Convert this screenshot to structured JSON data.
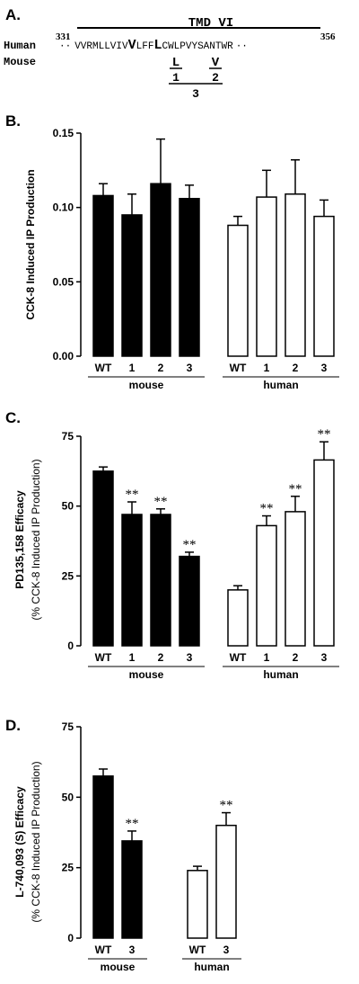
{
  "panels": {
    "a": {
      "label": "A."
    },
    "b": {
      "label": "B."
    },
    "c": {
      "label": "C."
    },
    "d": {
      "label": "D."
    }
  },
  "sequence": {
    "region_label": "TMD VI",
    "start_number": "331",
    "end_number": "356",
    "human_label": "Human",
    "mouse_label": "Mouse",
    "human_prefix": "VVRMLLVIV",
    "human_v": "V",
    "human_mid": "LFF",
    "human_l": "L",
    "human_suffix": "CWLPVYSANTWR",
    "mouse_l": "L",
    "mouse_v": "V",
    "mutant_1": "1",
    "mutant_2": "2",
    "mutant_3": "3"
  },
  "chart_data": [
    {
      "panel": "B",
      "type": "bar",
      "ylabel": "CCK-8 Induced IP Production",
      "ylim": [
        0,
        0.15
      ],
      "yticks": [
        "0.00",
        "0.05",
        "0.10",
        "0.15"
      ],
      "groups": [
        {
          "name": "mouse",
          "categories": [
            "WT",
            "1",
            "2",
            "3"
          ],
          "fill": "#000000",
          "values": [
            0.108,
            0.095,
            0.116,
            0.106
          ],
          "errors": [
            0.008,
            0.014,
            0.03,
            0.009
          ],
          "significance": [
            "",
            "",
            "",
            ""
          ]
        },
        {
          "name": "human",
          "categories": [
            "WT",
            "1",
            "2",
            "3"
          ],
          "fill": "#ffffff",
          "values": [
            0.088,
            0.107,
            0.109,
            0.094
          ],
          "errors": [
            0.006,
            0.018,
            0.023,
            0.011
          ],
          "significance": [
            "",
            "",
            "",
            ""
          ]
        }
      ]
    },
    {
      "panel": "C",
      "type": "bar",
      "ylabel": "PD135,158 Efficacy",
      "ylabel_sub": "(% CCK-8 Induced IP Production)",
      "ylim": [
        0,
        75
      ],
      "yticks": [
        "0",
        "25",
        "50",
        "75"
      ],
      "groups": [
        {
          "name": "mouse",
          "categories": [
            "WT",
            "1",
            "2",
            "3"
          ],
          "fill": "#000000",
          "values": [
            62.5,
            47,
            47,
            32
          ],
          "errors": [
            1.5,
            4.5,
            2,
            1.5
          ],
          "significance": [
            "",
            "**",
            "**",
            "**"
          ]
        },
        {
          "name": "human",
          "categories": [
            "WT",
            "1",
            "2",
            "3"
          ],
          "fill": "#ffffff",
          "values": [
            20,
            43,
            48,
            66.5
          ],
          "errors": [
            1.5,
            3.5,
            5.5,
            6.5
          ],
          "significance": [
            "",
            "**",
            "**",
            "**"
          ]
        }
      ]
    },
    {
      "panel": "D",
      "type": "bar",
      "ylabel": "L-740,093 (S) Efficacy",
      "ylabel_sub": "(% CCK-8 Induced IP Production)",
      "ylim": [
        0,
        75
      ],
      "yticks": [
        "0",
        "25",
        "50",
        "75"
      ],
      "groups": [
        {
          "name": "mouse",
          "categories": [
            "WT",
            "3"
          ],
          "fill": "#000000",
          "values": [
            57.5,
            34.5
          ],
          "errors": [
            2.5,
            3.5
          ],
          "significance": [
            "",
            "**"
          ]
        },
        {
          "name": "human",
          "categories": [
            "WT",
            "3"
          ],
          "fill": "#ffffff",
          "values": [
            24,
            40
          ],
          "errors": [
            1.5,
            4.5
          ],
          "significance": [
            "",
            "**"
          ]
        }
      ]
    }
  ]
}
